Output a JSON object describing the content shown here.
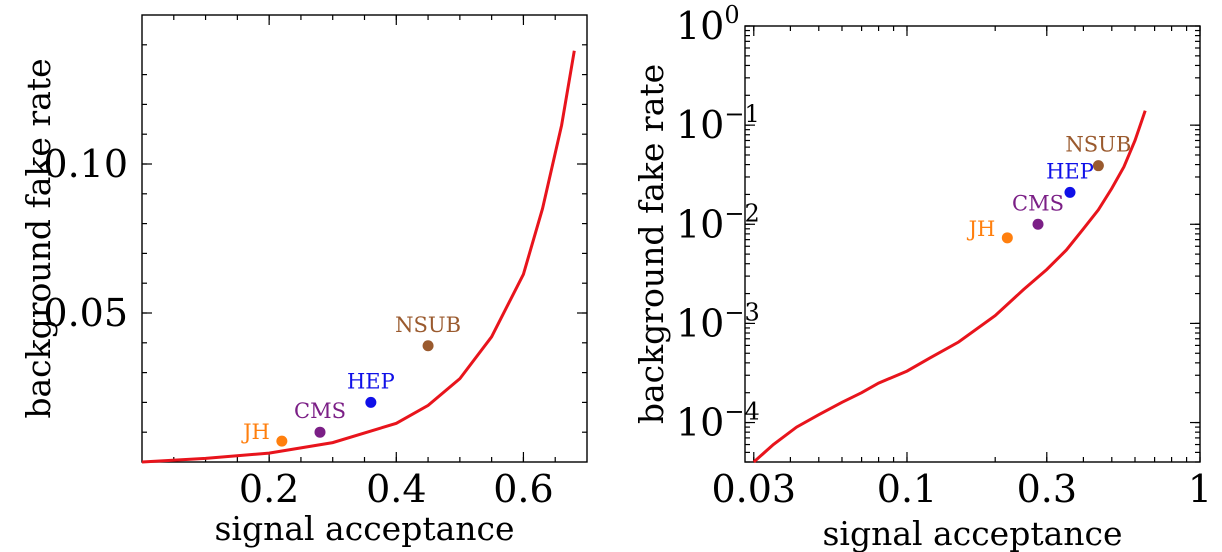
{
  "chart_data": [
    {
      "type": "scatter",
      "panel": "left",
      "xlabel": "signal acceptance",
      "ylabel": "background fake rate",
      "xscale": "linear",
      "yscale": "linear",
      "xlim": [
        0.0,
        0.7
      ],
      "ylim": [
        0.0,
        0.15
      ],
      "xticks": [
        0.2,
        0.4,
        0.6
      ],
      "xtick_labels": [
        "0.2",
        "0.4",
        "0.6"
      ],
      "yticks": [
        0.05,
        0.1
      ],
      "ytick_labels": [
        "0.05",
        "0.10"
      ],
      "curve": {
        "color": "#e8141c",
        "x": [
          0.0,
          0.1,
          0.2,
          0.3,
          0.4,
          0.45,
          0.5,
          0.55,
          0.6,
          0.63,
          0.66,
          0.68
        ],
        "y": [
          0.0,
          0.0012,
          0.003,
          0.0065,
          0.013,
          0.019,
          0.028,
          0.042,
          0.063,
          0.085,
          0.113,
          0.138
        ]
      },
      "points": [
        {
          "label": "JH",
          "x": 0.22,
          "y": 0.007,
          "color": "#ff7f0e"
        },
        {
          "label": "CMS",
          "x": 0.28,
          "y": 0.01,
          "color": "#7b1f86"
        },
        {
          "label": "HEP",
          "x": 0.36,
          "y": 0.02,
          "color": "#1010e8"
        },
        {
          "label": "NSUB",
          "x": 0.45,
          "y": 0.039,
          "color": "#9a5a2e"
        }
      ]
    },
    {
      "type": "scatter",
      "panel": "right",
      "xlabel": "signal acceptance",
      "ylabel": "background fake rate",
      "xscale": "log",
      "yscale": "log",
      "xlim": [
        0.028,
        1.0
      ],
      "ylim": [
        4e-05,
        1.0
      ],
      "xticks": [
        0.03,
        0.1,
        0.3,
        1.0
      ],
      "xtick_labels": [
        "0.03",
        "0.1",
        "0.3",
        "1"
      ],
      "yticks": [
        0.0001,
        0.001,
        0.01,
        0.1,
        1.0
      ],
      "ytick_labels": [
        {
          "base": "10",
          "exp": "−4"
        },
        {
          "base": "10",
          "exp": "−3"
        },
        {
          "base": "10",
          "exp": "−2"
        },
        {
          "base": "10",
          "exp": "−1"
        },
        {
          "base": "10",
          "exp": "0"
        }
      ],
      "curve": {
        "color": "#e8141c",
        "x": [
          0.03,
          0.035,
          0.042,
          0.05,
          0.06,
          0.07,
          0.08,
          0.1,
          0.12,
          0.15,
          0.2,
          0.25,
          0.3,
          0.35,
          0.4,
          0.45,
          0.5,
          0.55,
          0.6,
          0.65
        ],
        "y": [
          4e-05,
          6e-05,
          9e-05,
          0.00012,
          0.00016,
          0.0002,
          0.00025,
          0.00033,
          0.00045,
          0.00065,
          0.0012,
          0.0022,
          0.0035,
          0.0055,
          0.009,
          0.014,
          0.023,
          0.038,
          0.07,
          0.14
        ]
      },
      "points": [
        {
          "label": "JH",
          "x": 0.22,
          "y": 0.0073,
          "color": "#ff7f0e"
        },
        {
          "label": "CMS",
          "x": 0.28,
          "y": 0.01,
          "color": "#7b1f86"
        },
        {
          "label": "HEP",
          "x": 0.36,
          "y": 0.021,
          "color": "#1010e8"
        },
        {
          "label": "NSUB",
          "x": 0.45,
          "y": 0.039,
          "color": "#9a5a2e"
        }
      ]
    }
  ]
}
